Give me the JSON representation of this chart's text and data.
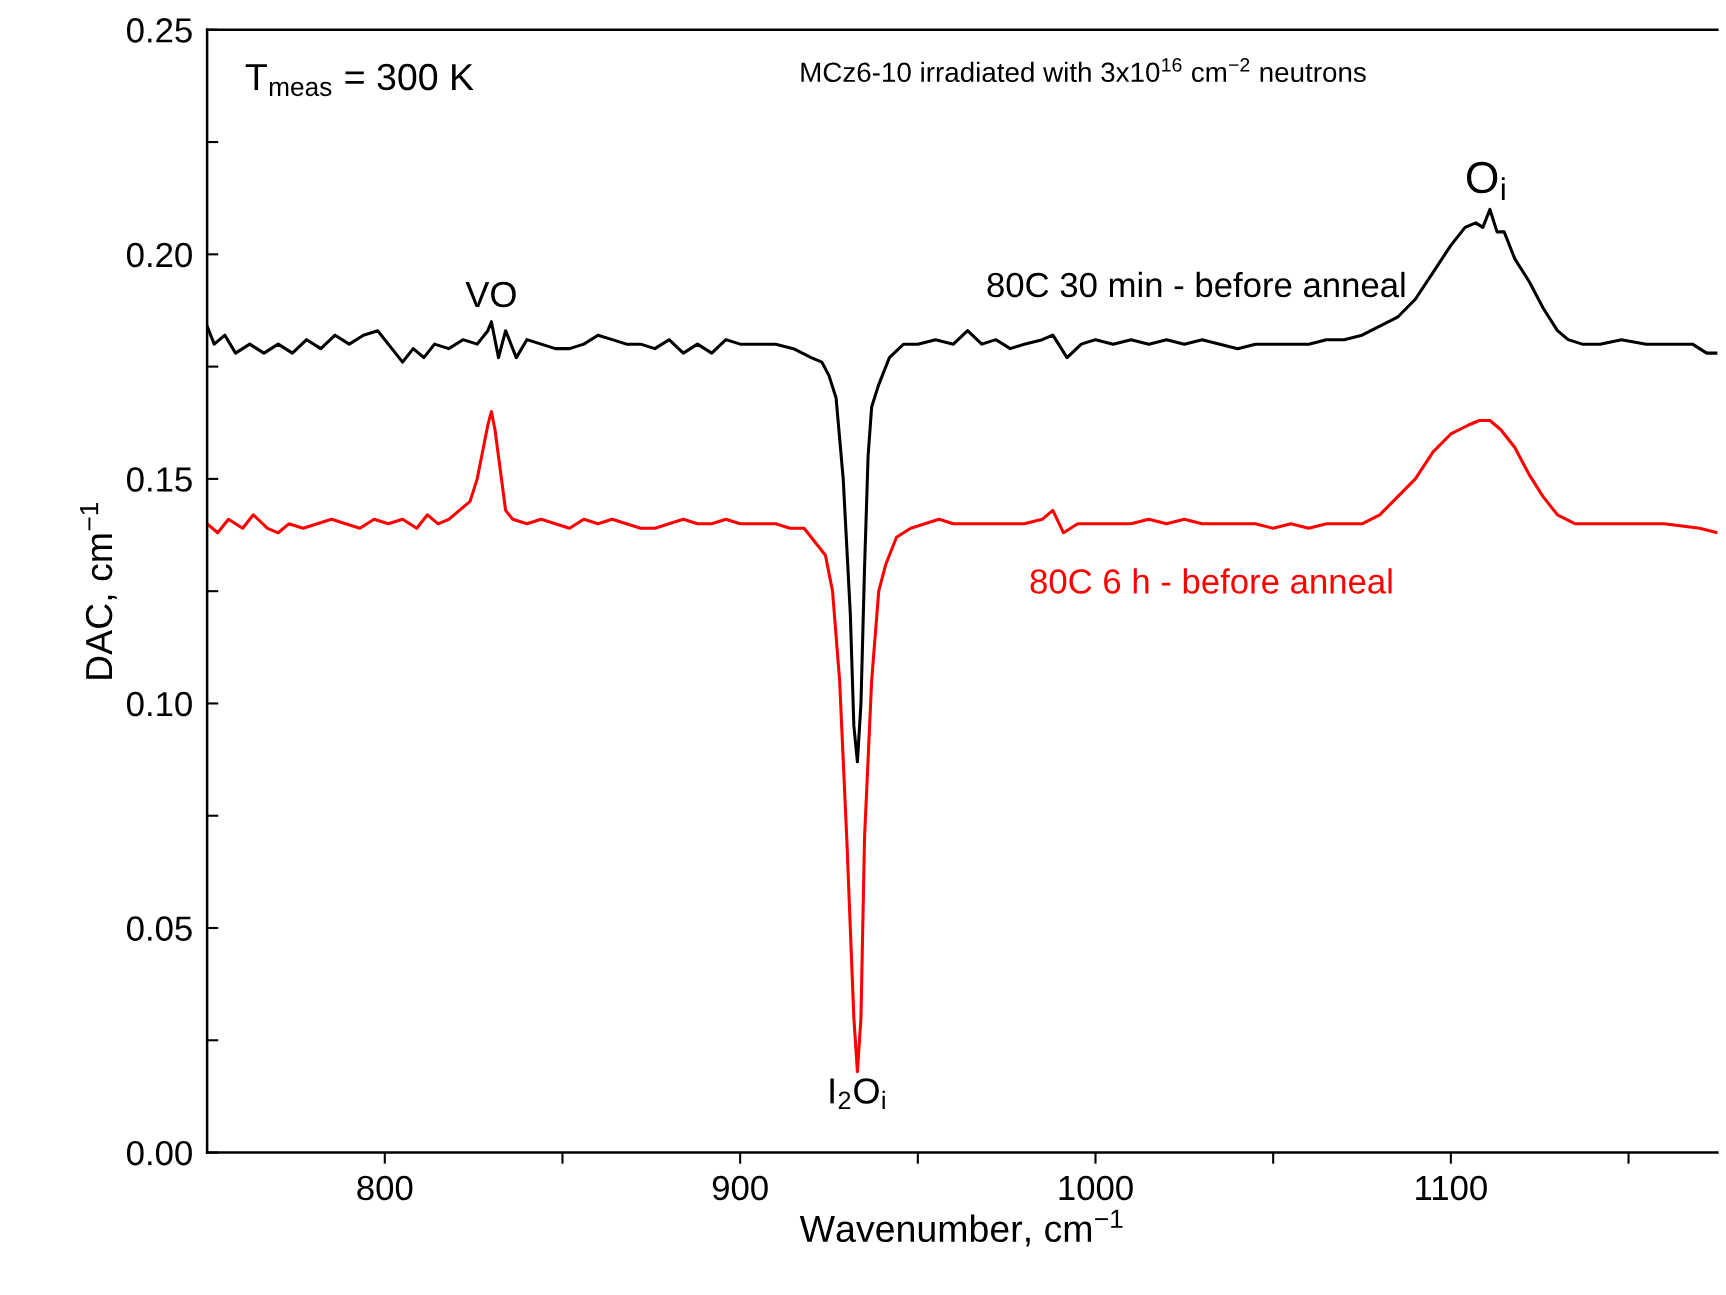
{
  "chart_data": {
    "type": "line",
    "title": "MCz6-10 irradiated with 3x10$^{16}$ cm$^{−2}$ neutrons",
    "xlabel": "Wavenumber, cm$^{−1}$",
    "ylabel": "DAC, cm$^{−1}$",
    "xlim": [
      750,
      1175
    ],
    "ylim": [
      0,
      0.25
    ],
    "xticks": [
      800,
      {
        "value": 850,
        "label": null
      },
      900,
      {
        "value": 950,
        "label": null
      },
      1000,
      {
        "value": 1050,
        "label": null
      },
      1100,
      {
        "value": 1150,
        "label": null
      }
    ],
    "yticks": [
      {
        "value": 0,
        "label": "0.00"
      },
      {
        "value": 0.025,
        "label": null
      },
      {
        "value": 0.05,
        "label": "0.05"
      },
      {
        "value": 0.075,
        "label": null
      },
      {
        "value": 0.1,
        "label": "0.10"
      },
      {
        "value": 0.125,
        "label": null
      },
      {
        "value": 0.15,
        "label": "0.15"
      },
      {
        "value": 0.175,
        "label": null
      },
      {
        "value": 0.2,
        "label": "0.20"
      },
      {
        "value": 0.225,
        "label": null
      },
      {
        "value": 0.25,
        "label": "0.25"
      }
    ],
    "grid": false,
    "legend": false,
    "marker": "none",
    "line_style": "solid",
    "annotations": [
      "T$_{meas}$ = 300 K",
      {
        "text": "VO",
        "x": 830,
        "y": 0.186
      },
      {
        "text": "O$_{i}$",
        "x": 1110,
        "y": 0.211
      },
      {
        "text": "I$_{2}$O$_{i}$",
        "x": 933,
        "y": 0.018
      }
    ],
    "series": [
      {
        "name": "80C 30 min - before anneal",
        "color": "#000000",
        "x": [
          750,
          752,
          755,
          758,
          762,
          766,
          770,
          774,
          778,
          782,
          786,
          790,
          794,
          798,
          802,
          805,
          808,
          811,
          814,
          818,
          822,
          826,
          829,
          830,
          832,
          834,
          837,
          840,
          844,
          848,
          852,
          856,
          860,
          864,
          868,
          872,
          876,
          880,
          884,
          888,
          892,
          896,
          900,
          905,
          910,
          915,
          920,
          923,
          925,
          927,
          929,
          931,
          932,
          933,
          934,
          935,
          936,
          937,
          939,
          942,
          946,
          950,
          955,
          960,
          964,
          968,
          972,
          976,
          980,
          985,
          988,
          992,
          996,
          1000,
          1005,
          1010,
          1015,
          1020,
          1025,
          1030,
          1035,
          1040,
          1045,
          1050,
          1055,
          1060,
          1065,
          1070,
          1075,
          1080,
          1085,
          1090,
          1095,
          1100,
          1104,
          1107,
          1109,
          1111,
          1113,
          1115,
          1118,
          1122,
          1126,
          1130,
          1133,
          1137,
          1142,
          1148,
          1155,
          1162,
          1168,
          1172,
          1175
        ],
        "values": [
          0.184,
          0.18,
          0.182,
          0.178,
          0.18,
          0.178,
          0.18,
          0.178,
          0.181,
          0.179,
          0.182,
          0.18,
          0.182,
          0.183,
          0.179,
          0.176,
          0.179,
          0.177,
          0.18,
          0.179,
          0.181,
          0.18,
          0.183,
          0.185,
          0.177,
          0.183,
          0.177,
          0.181,
          0.18,
          0.179,
          0.179,
          0.18,
          0.182,
          0.181,
          0.18,
          0.18,
          0.179,
          0.181,
          0.178,
          0.18,
          0.178,
          0.181,
          0.18,
          0.18,
          0.18,
          0.179,
          0.177,
          0.176,
          0.173,
          0.168,
          0.15,
          0.12,
          0.095,
          0.087,
          0.1,
          0.13,
          0.155,
          0.166,
          0.171,
          0.177,
          0.18,
          0.18,
          0.181,
          0.18,
          0.183,
          0.18,
          0.181,
          0.179,
          0.18,
          0.181,
          0.182,
          0.177,
          0.18,
          0.181,
          0.18,
          0.181,
          0.18,
          0.181,
          0.18,
          0.181,
          0.18,
          0.179,
          0.18,
          0.18,
          0.18,
          0.18,
          0.181,
          0.181,
          0.182,
          0.184,
          0.186,
          0.19,
          0.196,
          0.202,
          0.206,
          0.207,
          0.206,
          0.21,
          0.205,
          0.205,
          0.199,
          0.194,
          0.188,
          0.183,
          0.181,
          0.18,
          0.18,
          0.181,
          0.18,
          0.18,
          0.18,
          0.178,
          0.178
        ]
      },
      {
        "name": "80C 6 h - before anneal",
        "color": "#ff0000",
        "x": [
          750,
          753,
          756,
          760,
          763,
          767,
          770,
          773,
          777,
          781,
          785,
          789,
          793,
          797,
          801,
          805,
          809,
          812,
          815,
          818,
          821,
          824,
          826,
          828,
          829,
          830,
          831,
          832,
          833,
          834,
          836,
          840,
          844,
          848,
          852,
          856,
          860,
          864,
          868,
          872,
          876,
          880,
          884,
          888,
          892,
          896,
          900,
          905,
          910,
          914,
          918,
          920,
          922,
          924,
          926,
          928,
          930,
          932,
          933,
          934,
          935,
          937,
          939,
          941,
          944,
          948,
          952,
          956,
          960,
          964,
          968,
          972,
          976,
          980,
          985,
          988,
          991,
          995,
          1000,
          1005,
          1010,
          1015,
          1020,
          1025,
          1030,
          1035,
          1040,
          1045,
          1050,
          1055,
          1060,
          1065,
          1070,
          1075,
          1080,
          1085,
          1090,
          1095,
          1100,
          1105,
          1108,
          1111,
          1114,
          1118,
          1122,
          1126,
          1130,
          1135,
          1140,
          1150,
          1160,
          1170,
          1175
        ],
        "values": [
          0.14,
          0.138,
          0.141,
          0.139,
          0.142,
          0.139,
          0.138,
          0.14,
          0.139,
          0.14,
          0.141,
          0.14,
          0.139,
          0.141,
          0.14,
          0.141,
          0.139,
          0.142,
          0.14,
          0.141,
          0.143,
          0.145,
          0.15,
          0.158,
          0.162,
          0.165,
          0.161,
          0.155,
          0.149,
          0.143,
          0.141,
          0.14,
          0.141,
          0.14,
          0.139,
          0.141,
          0.14,
          0.141,
          0.14,
          0.139,
          0.139,
          0.14,
          0.141,
          0.14,
          0.14,
          0.141,
          0.14,
          0.14,
          0.14,
          0.139,
          0.139,
          0.137,
          0.135,
          0.133,
          0.125,
          0.105,
          0.07,
          0.03,
          0.018,
          0.03,
          0.07,
          0.105,
          0.125,
          0.131,
          0.137,
          0.139,
          0.14,
          0.141,
          0.14,
          0.14,
          0.14,
          0.14,
          0.14,
          0.14,
          0.141,
          0.143,
          0.138,
          0.14,
          0.14,
          0.14,
          0.14,
          0.141,
          0.14,
          0.141,
          0.14,
          0.14,
          0.14,
          0.14,
          0.139,
          0.14,
          0.139,
          0.14,
          0.14,
          0.14,
          0.142,
          0.146,
          0.15,
          0.156,
          0.16,
          0.162,
          0.163,
          0.163,
          0.161,
          0.157,
          0.151,
          0.146,
          0.142,
          0.14,
          0.14,
          0.14,
          0.14,
          0.139,
          0.138
        ]
      }
    ]
  }
}
